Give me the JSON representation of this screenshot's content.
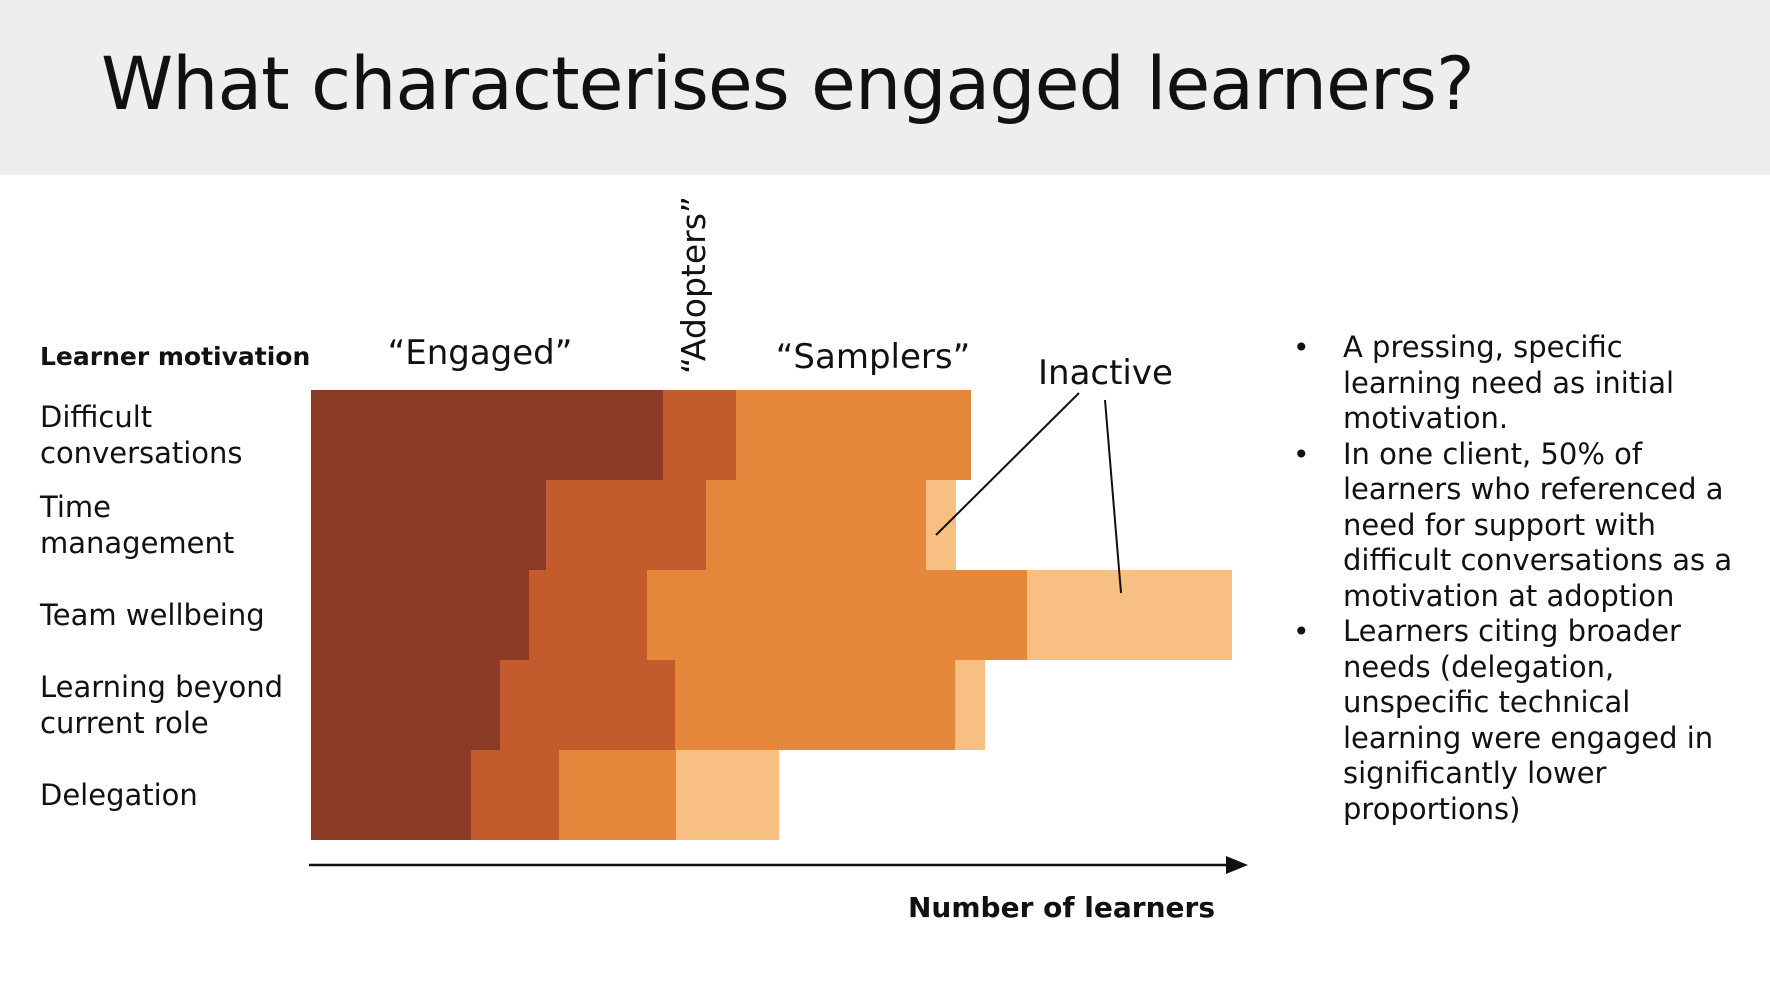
{
  "slide": {
    "title": "What characterises engaged learners?"
  },
  "chart_data": {
    "type": "bar",
    "orientation": "horizontal",
    "stacked": true,
    "y_title": "Learner motivation",
    "xlabel": "Number of learners",
    "categories": [
      "Difficult conversations",
      "Time management",
      "Team wellbeing",
      "Learning beyond current role",
      "Delegation"
    ],
    "category_lines": [
      [
        "Difficult",
        "conversations"
      ],
      [
        "Time",
        "management"
      ],
      [
        "Team wellbeing"
      ],
      [
        "Learning beyond",
        "current role"
      ],
      [
        "Delegation"
      ]
    ],
    "series": [
      {
        "name": "“Engaged”",
        "color": "#8b3a25",
        "values": [
          352,
          235,
          218,
          189,
          160
        ]
      },
      {
        "name": "“Adopters”",
        "color": "#c35b2d",
        "values": [
          73,
          160,
          118,
          175,
          88
        ]
      },
      {
        "name": "“Samplers”",
        "color": "#e5883c",
        "values": [
          235,
          220,
          380,
          280,
          117
        ]
      },
      {
        "name": "Inactive",
        "color": "#f8bf82",
        "values": [
          0,
          30,
          205,
          30,
          103
        ]
      }
    ],
    "grid": false,
    "legend": "inline labels above the bars"
  },
  "notes": {
    "bullets": [
      "A pressing, specific learning need as initial motivation.",
      "In one client, 50% of learners who referenced a need for support with difficult conversations as a motivation at adoption",
      "Learners citing broader needs (delegation, unspecific technical learning were engaged in significantly lower proportions)"
    ]
  }
}
